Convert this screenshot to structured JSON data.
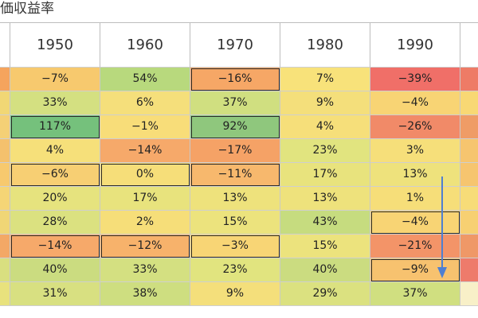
{
  "title": "価収益率",
  "columns": [
    "1950",
    "1960",
    "1970",
    "1980",
    "1990"
  ],
  "rows": [
    {
      "left_color": "#f5a45d",
      "right_color": "#ee7b66",
      "cells": [
        {
          "text": "−7%",
          "bg": "#f7c96e"
        },
        {
          "text": "54%",
          "bg": "#b8d97d"
        },
        {
          "text": "−16%",
          "bg": "#f6a766"
        },
        {
          "text": "7%",
          "bg": "#f8e27a"
        },
        {
          "text": "−39%",
          "bg": "#f06f68"
        }
      ]
    },
    {
      "left_color": "#f1d775",
      "right_color": "#f8d874",
      "cells": [
        {
          "text": "33%",
          "bg": "#d4e081"
        },
        {
          "text": "6%",
          "bg": "#f5df7b"
        },
        {
          "text": "37%",
          "bg": "#d0df80"
        },
        {
          "text": "9%",
          "bg": "#f4df7b"
        },
        {
          "text": "−4%",
          "bg": "#f8d474"
        }
      ]
    },
    {
      "left_color": "#f4d076",
      "right_color": "#ef9c66",
      "cells": [
        {
          "text": "117%",
          "bg": "#75c17c"
        },
        {
          "text": "−1%",
          "bg": "#f8dd79"
        },
        {
          "text": "92%",
          "bg": "#8fc77d"
        },
        {
          "text": "4%",
          "bg": "#f6df7a"
        },
        {
          "text": "−26%",
          "bg": "#f18a68"
        }
      ]
    },
    {
      "left_color": "#f4c16d",
      "right_color": "#f6c56f",
      "cells": [
        {
          "text": "4%",
          "bg": "#f6e07a"
        },
        {
          "text": "−14%",
          "bg": "#f6a96a"
        },
        {
          "text": "−17%",
          "bg": "#f5a266"
        },
        {
          "text": "23%",
          "bg": "#e1e47f"
        },
        {
          "text": "3%",
          "bg": "#f6df7a"
        }
      ]
    },
    {
      "left_color": "#f7c96e",
      "right_color": "#f6c56f",
      "cells": [
        {
          "text": "−6%",
          "bg": "#f7cf73"
        },
        {
          "text": "0%",
          "bg": "#f6de79"
        },
        {
          "text": "−11%",
          "bg": "#f7b86d"
        },
        {
          "text": "17%",
          "bg": "#e8e37d"
        },
        {
          "text": "13%",
          "bg": "#eee27c"
        }
      ]
    },
    {
      "left_color": "#f5d576",
      "right_color": "#f7dc78",
      "cells": [
        {
          "text": "20%",
          "bg": "#e6e37e"
        },
        {
          "text": "17%",
          "bg": "#e8e37d"
        },
        {
          "text": "13%",
          "bg": "#eee27c"
        },
        {
          "text": "13%",
          "bg": "#eee27c"
        },
        {
          "text": "1%",
          "bg": "#f6de79"
        }
      ]
    },
    {
      "left_color": "#f0d676",
      "right_color": "#f7d072",
      "cells": [
        {
          "text": "28%",
          "bg": "#dbe180"
        },
        {
          "text": "2%",
          "bg": "#f6de79"
        },
        {
          "text": "15%",
          "bg": "#ece37d"
        },
        {
          "text": "43%",
          "bg": "#c6dc7f"
        },
        {
          "text": "−4%",
          "bg": "#f8d474"
        }
      ]
    },
    {
      "left_color": "#f3a866",
      "right_color": "#ef9867",
      "cells": [
        {
          "text": "−14%",
          "bg": "#f6a96a"
        },
        {
          "text": "−12%",
          "bg": "#f7b26b"
        },
        {
          "text": "−3%",
          "bg": "#f8d575"
        },
        {
          "text": "15%",
          "bg": "#ece37d"
        },
        {
          "text": "−21%",
          "bg": "#f39468"
        }
      ]
    },
    {
      "left_color": "#d9df80",
      "right_color": "#ee7b6b",
      "cells": [
        {
          "text": "40%",
          "bg": "#cbdc80"
        },
        {
          "text": "33%",
          "bg": "#d4e081"
        },
        {
          "text": "23%",
          "bg": "#e1e47f"
        },
        {
          "text": "40%",
          "bg": "#cbdc80"
        },
        {
          "text": "−9%",
          "bg": "#f7c26f"
        }
      ]
    },
    {
      "left_color": "#e8e27d",
      "right_color": "#f8f0c8",
      "cells": [
        {
          "text": "31%",
          "bg": "#d8e081"
        },
        {
          "text": "38%",
          "bg": "#cede80"
        },
        {
          "text": "9%",
          "bg": "#f4df7b"
        },
        {
          "text": "29%",
          "bg": "#dbe180"
        },
        {
          "text": "37%",
          "bg": "#d0df80"
        }
      ]
    }
  ],
  "bold_cells": [
    [
      0,
      2
    ],
    [
      2,
      0
    ],
    [
      2,
      2
    ],
    [
      4,
      0
    ],
    [
      4,
      1
    ],
    [
      4,
      2
    ],
    [
      6,
      4
    ],
    [
      7,
      0
    ],
    [
      7,
      1
    ],
    [
      7,
      2
    ],
    [
      8,
      4
    ]
  ],
  "arrow_color": "#4f7fd1"
}
